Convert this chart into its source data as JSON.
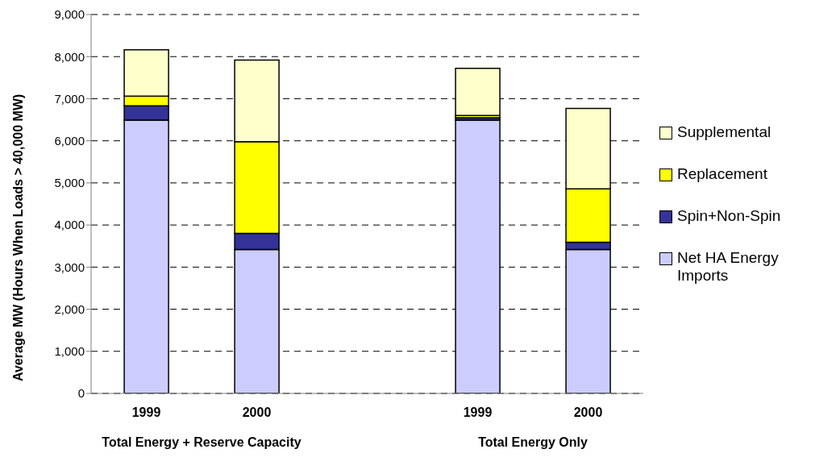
{
  "chart_data": {
    "type": "bar",
    "stacked": true,
    "ylabel": "Average MW (Hours When Loads > 40,000 MW)",
    "categories": [
      "1999",
      "2000",
      null,
      "1999",
      "2000"
    ],
    "series": [
      {
        "name": "Net HA Energy Imports",
        "color": "#ccccff",
        "values": [
          6490,
          3420,
          null,
          6490,
          3420
        ]
      },
      {
        "name": "Spin+Non-Spin",
        "color": "#333399",
        "values": [
          340,
          380,
          null,
          60,
          170
        ]
      },
      {
        "name": "Replacement",
        "color": "#ffff00",
        "values": [
          230,
          2180,
          null,
          50,
          1270
        ]
      },
      {
        "name": "Supplemental",
        "color": "#ffffcc",
        "values": [
          1100,
          1940,
          null,
          1120,
          1910
        ]
      }
    ],
    "ylim": [
      0,
      9000
    ],
    "yticks": [
      0,
      {
        "value": 1000,
        "label": "1,000"
      },
      {
        "value": 2000,
        "label": "2,000"
      },
      {
        "value": 3000,
        "label": "3,000"
      },
      {
        "value": 4000,
        "label": "4,000"
      },
      {
        "value": 5000,
        "label": "5,000"
      },
      {
        "value": 6000,
        "label": "6,000"
      },
      {
        "value": 7000,
        "label": "7,000"
      },
      {
        "value": 8000,
        "label": "8,000"
      },
      {
        "value": 9000,
        "label": "9,000"
      }
    ],
    "grid": "y",
    "legend": "right",
    "annotations": [
      "Total Energy + Reserve Capacity",
      "Total Energy Only"
    ]
  }
}
